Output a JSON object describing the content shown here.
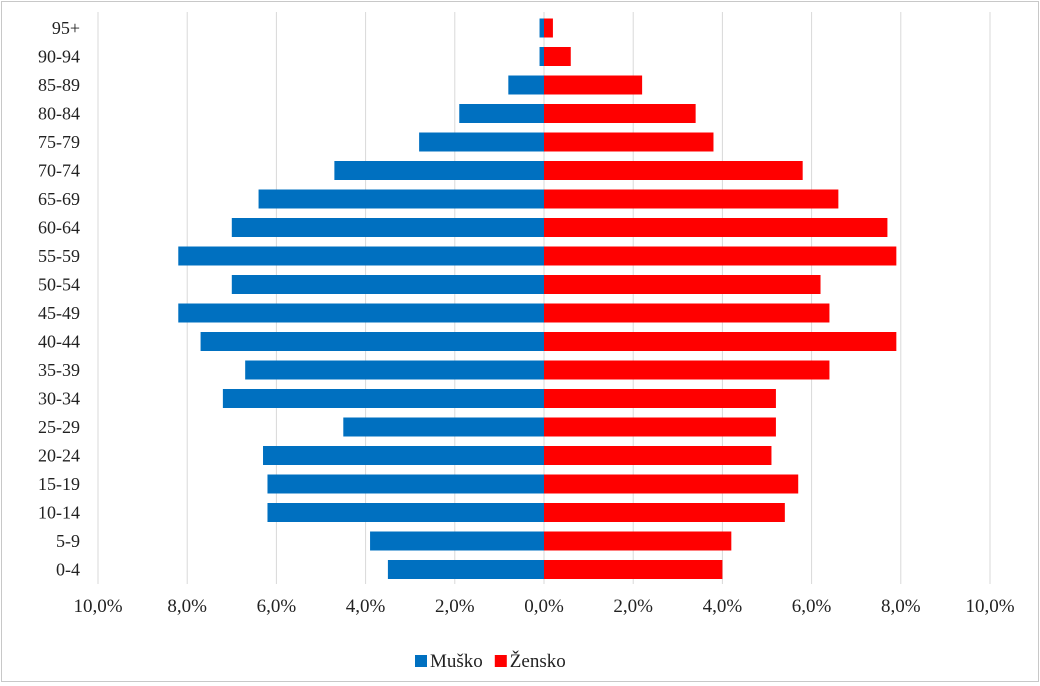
{
  "chart_data": {
    "type": "bar",
    "orientation": "horizontal",
    "subtype": "population-pyramid",
    "title": "",
    "xlabel": "",
    "ylabel": "",
    "xlim": [
      -10,
      10
    ],
    "x_ticks": [
      "10,0%",
      "8,0%",
      "6,0%",
      "4,0%",
      "2,0%",
      "0,0%",
      "2,0%",
      "4,0%",
      "6,0%",
      "8,0%",
      "10,0%"
    ],
    "grid": "vertical",
    "legend_placement": "bottom",
    "categories": [
      "95+",
      "90-94",
      "85-89",
      "80-84",
      "75-79",
      "70-74",
      "65-69",
      "60-64",
      "55-59",
      "50-54",
      "45-49",
      "40-44",
      "35-39",
      "30-34",
      "25-29",
      "20-24",
      "15-19",
      "10-14",
      "5-9",
      "0-4"
    ],
    "series": [
      {
        "name": "Muško",
        "color": "#0070c0",
        "side": "left",
        "values": [
          0.1,
          0.1,
          0.8,
          1.9,
          2.8,
          4.7,
          6.4,
          7.0,
          8.2,
          7.0,
          8.2,
          7.7,
          6.7,
          7.2,
          4.5,
          6.3,
          6.2,
          6.2,
          3.9,
          3.5
        ]
      },
      {
        "name": "Žensko",
        "color": "#ff0000",
        "side": "right",
        "values": [
          0.2,
          0.6,
          2.2,
          3.4,
          3.8,
          5.8,
          6.6,
          7.7,
          7.9,
          6.2,
          6.4,
          7.9,
          6.4,
          5.2,
          5.2,
          5.1,
          5.7,
          5.4,
          4.2,
          4.0
        ]
      }
    ]
  }
}
